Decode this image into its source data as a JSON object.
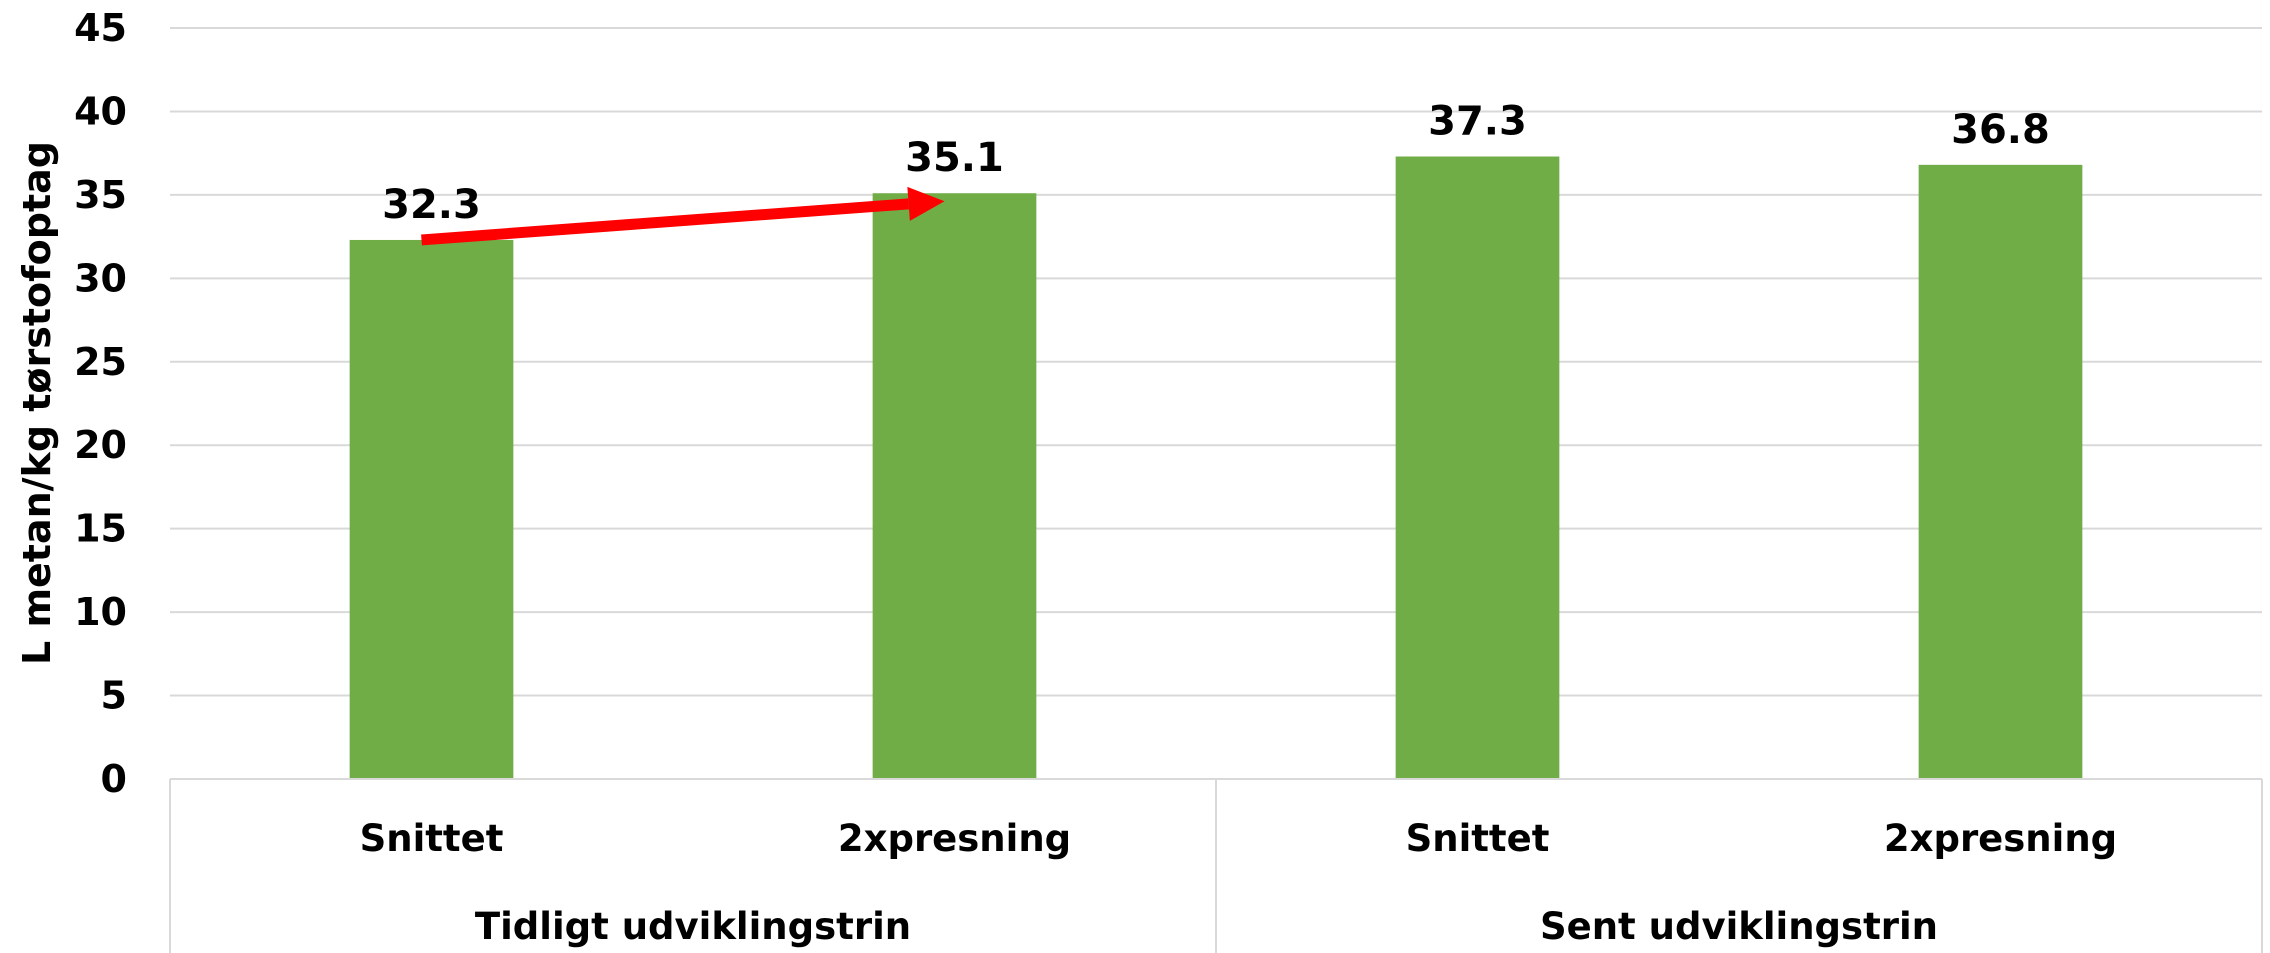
{
  "chart_data": {
    "type": "bar",
    "ylabel": "L metan/kg tørstofoptag",
    "ylim": [
      0,
      45
    ],
    "yticks": [
      0,
      5,
      10,
      15,
      20,
      25,
      30,
      35,
      40,
      45
    ],
    "grid": true,
    "bar_color": "#70AD47",
    "groups": [
      {
        "label": "Tidligt udviklingstrin",
        "categories": [
          "Snittet",
          "2xpresning"
        ]
      },
      {
        "label": "Sent udviklingstrin",
        "categories": [
          "Snittet",
          "2xpresning"
        ]
      }
    ],
    "values": [
      32.3,
      35.1,
      37.3,
      36.8
    ],
    "data_labels": [
      "32.3",
      "35.1",
      "37.3",
      "36.8"
    ],
    "annotation": {
      "type": "arrow",
      "color": "#FF0000",
      "from_bar": 0,
      "to_bar": 1
    }
  }
}
